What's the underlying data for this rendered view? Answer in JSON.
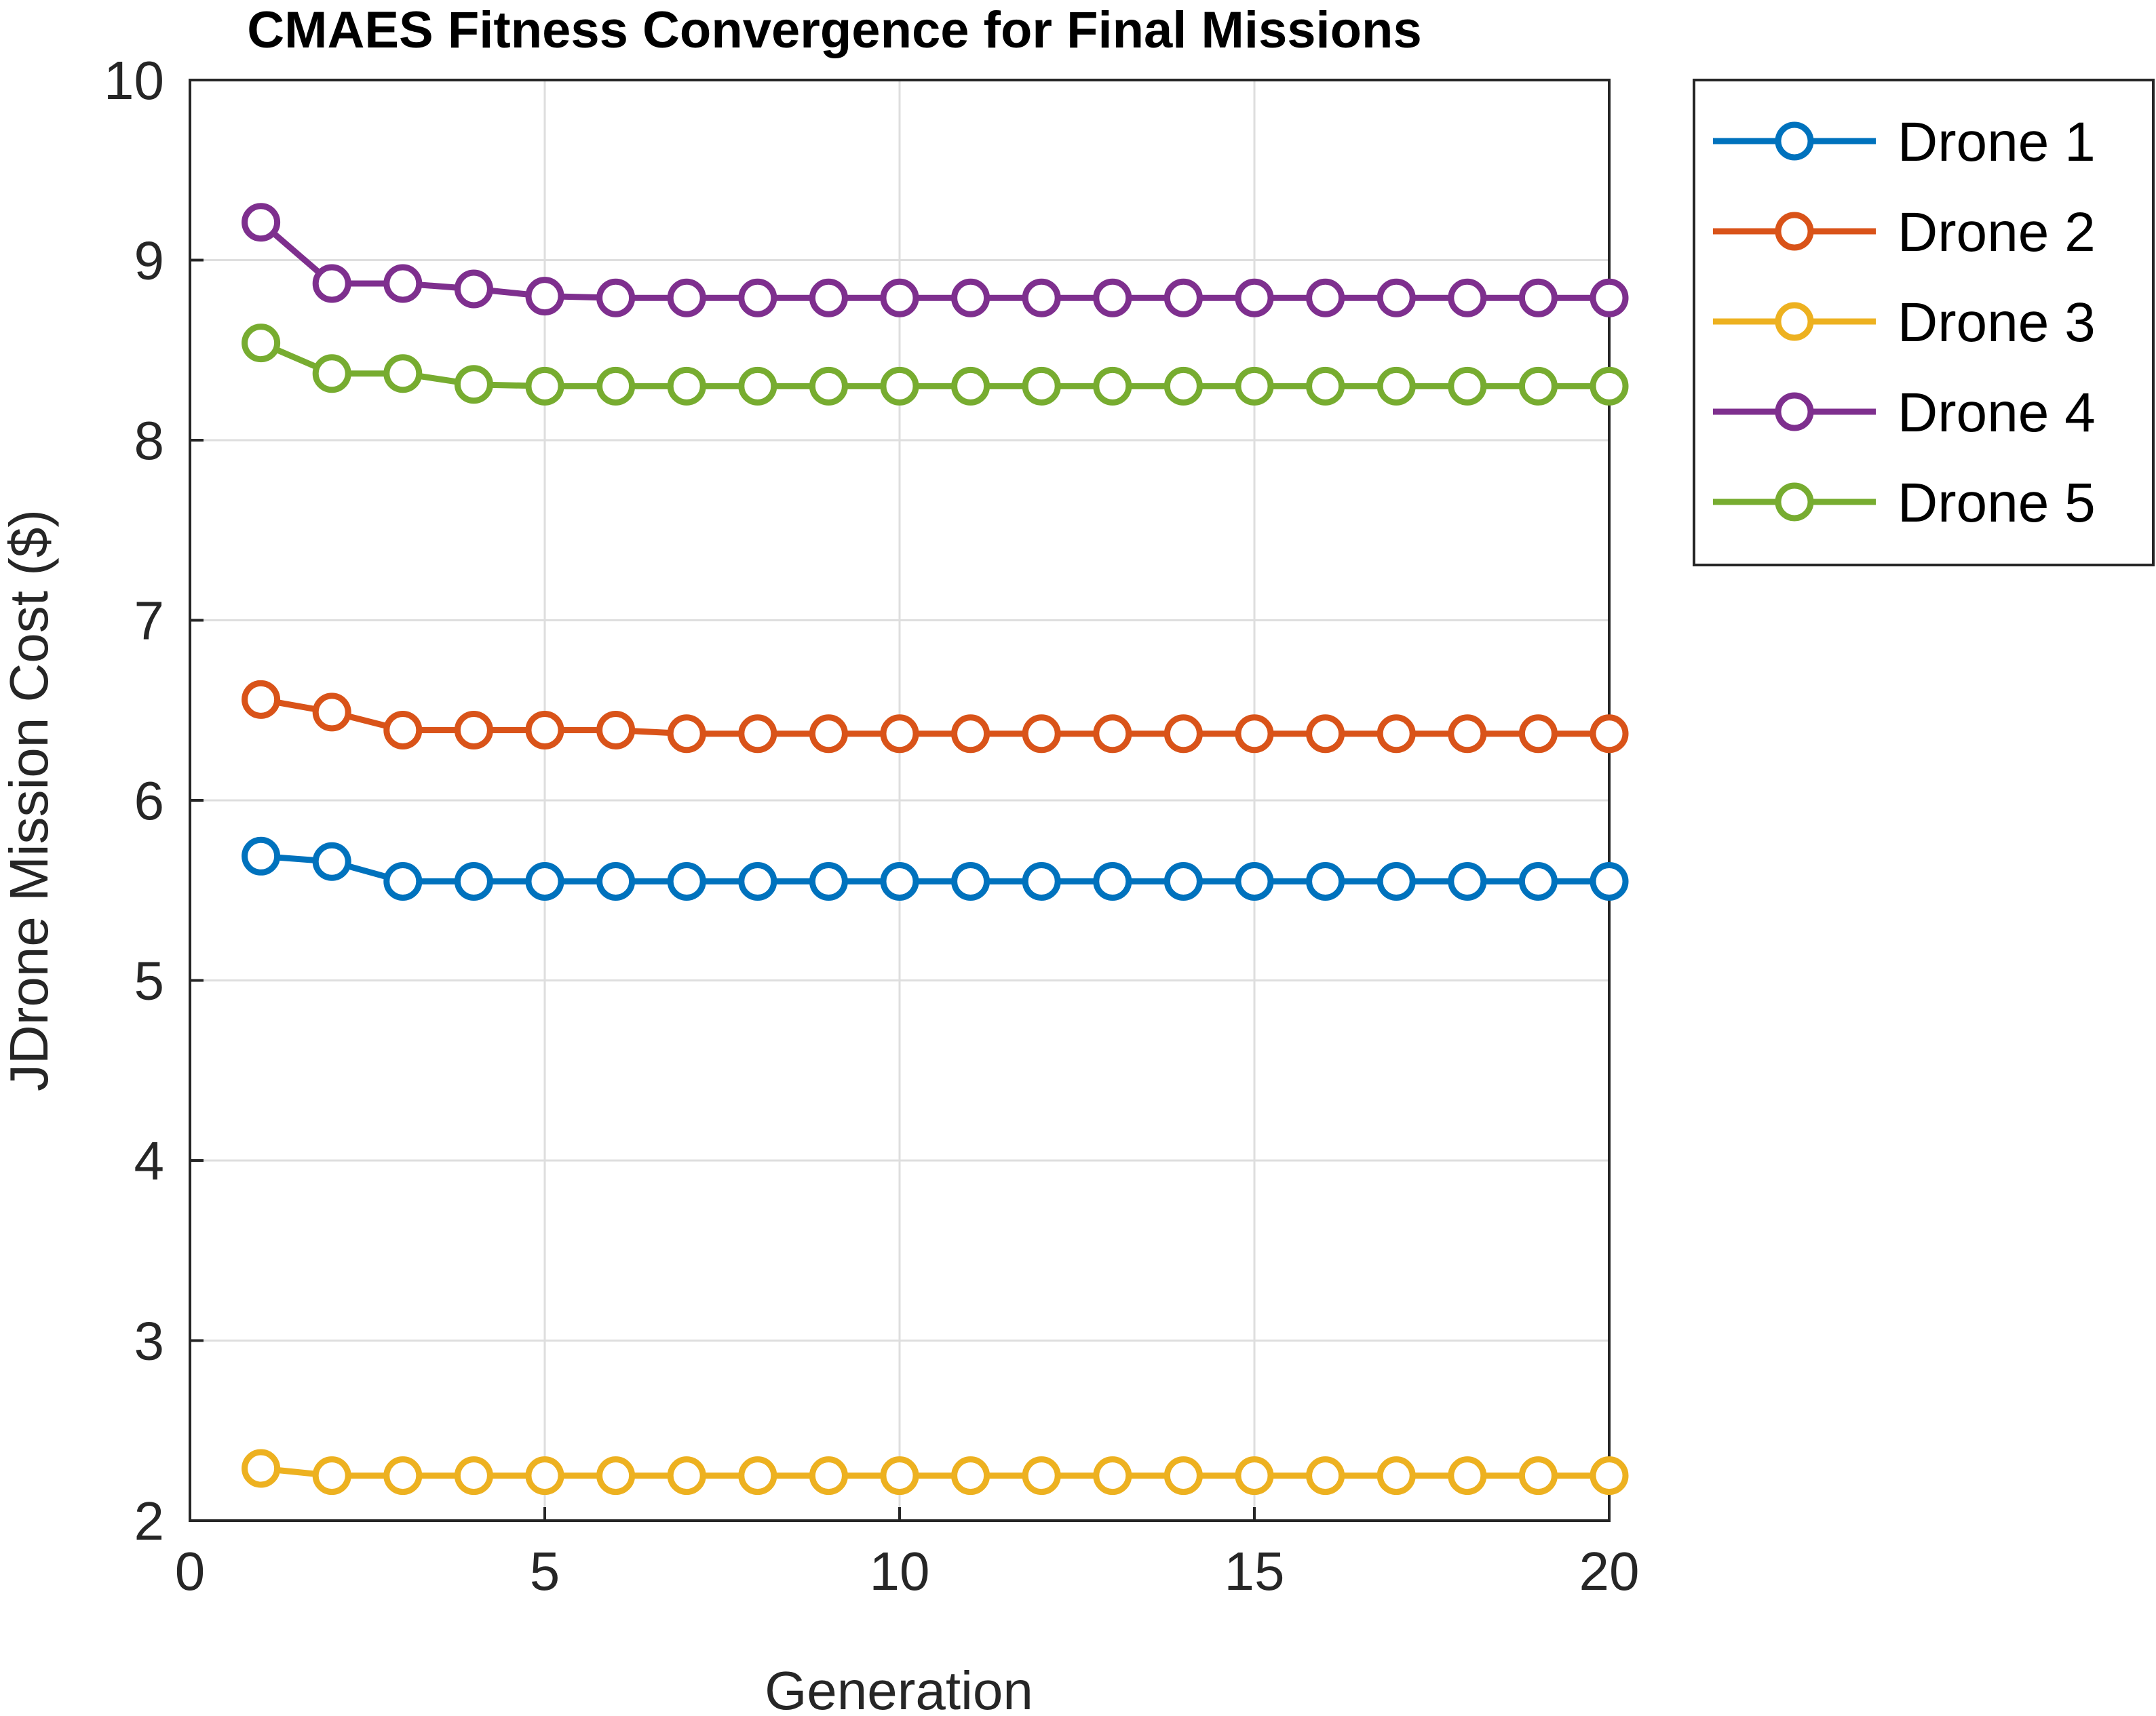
{
  "chart_data": {
    "type": "line",
    "title": "CMAES Fitness Convergence for Final Missions",
    "xlabel": "Generation",
    "ylabel": "JDrone Mission Cost ($)",
    "xlim": [
      0,
      20
    ],
    "ylim": [
      2,
      10
    ],
    "xticks": [
      0,
      5,
      10,
      15,
      20
    ],
    "yticks": [
      2,
      3,
      4,
      5,
      6,
      7,
      8,
      9,
      10
    ],
    "grid": true,
    "legend_position": "outside-top-right",
    "marker": "circle-open",
    "x": [
      1,
      2,
      3,
      4,
      5,
      6,
      7,
      8,
      9,
      10,
      11,
      12,
      13,
      14,
      15,
      16,
      17,
      18,
      19,
      20
    ],
    "series": [
      {
        "name": "Drone 1",
        "color": "#0072BD",
        "values": [
          5.69,
          5.66,
          5.55,
          5.55,
          5.55,
          5.55,
          5.55,
          5.55,
          5.55,
          5.55,
          5.55,
          5.55,
          5.55,
          5.55,
          5.55,
          5.55,
          5.55,
          5.55,
          5.55,
          5.55
        ]
      },
      {
        "name": "Drone 2",
        "color": "#D95319",
        "values": [
          6.56,
          6.49,
          6.39,
          6.39,
          6.39,
          6.39,
          6.37,
          6.37,
          6.37,
          6.37,
          6.37,
          6.37,
          6.37,
          6.37,
          6.37,
          6.37,
          6.37,
          6.37,
          6.37,
          6.37
        ]
      },
      {
        "name": "Drone 3",
        "color": "#EDB120",
        "values": [
          2.29,
          2.25,
          2.25,
          2.25,
          2.25,
          2.25,
          2.25,
          2.25,
          2.25,
          2.25,
          2.25,
          2.25,
          2.25,
          2.25,
          2.25,
          2.25,
          2.25,
          2.25,
          2.25,
          2.25
        ]
      },
      {
        "name": "Drone 4",
        "color": "#7E2F8E",
        "values": [
          9.21,
          8.87,
          8.87,
          8.84,
          8.8,
          8.79,
          8.79,
          8.79,
          8.79,
          8.79,
          8.79,
          8.79,
          8.79,
          8.79,
          8.79,
          8.79,
          8.79,
          8.79,
          8.79,
          8.79
        ]
      },
      {
        "name": "Drone 5",
        "color": "#77AC30",
        "values": [
          8.54,
          8.37,
          8.37,
          8.31,
          8.3,
          8.3,
          8.3,
          8.3,
          8.3,
          8.3,
          8.3,
          8.3,
          8.3,
          8.3,
          8.3,
          8.3,
          8.3,
          8.3,
          8.3,
          8.3
        ]
      }
    ]
  }
}
